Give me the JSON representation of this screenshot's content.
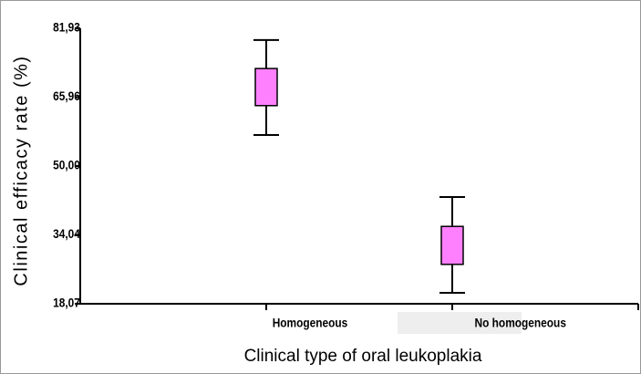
{
  "chart_data": {
    "type": "box",
    "categories": [
      "Homogeneous",
      "No homogeneous"
    ],
    "high": [
      79.2,
      42.8
    ],
    "q3": [
      72.6,
      36.0
    ],
    "q1": [
      64.0,
      27.2
    ],
    "low": [
      57.2,
      20.6
    ],
    "color": "#ff80ff",
    "ylim": [
      18.07,
      81.93
    ],
    "yticks": [
      {
        "value": 18.07,
        "label": "18,07"
      },
      {
        "value": 34.04,
        "label": "34,04"
      },
      {
        "value": 50.0,
        "label": "50,00"
      },
      {
        "value": 65.96,
        "label": "65,96"
      },
      {
        "value": 81.93,
        "label": "81,93"
      }
    ],
    "xlabel": "Clinical type of oral leukoplakia",
    "ylabel": "Clinical efficacy rate (%)"
  }
}
